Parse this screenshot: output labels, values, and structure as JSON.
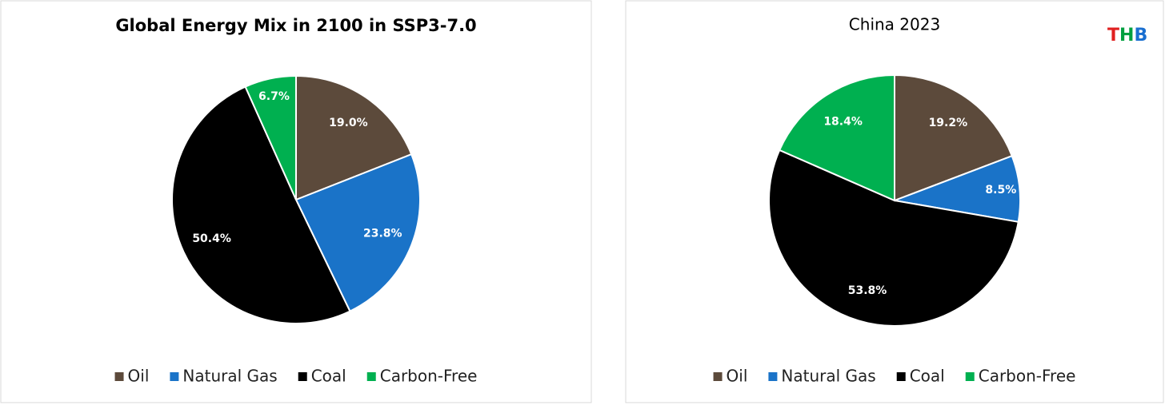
{
  "chart_data": [
    {
      "type": "pie",
      "title": "Global Energy Mix in 2100 in SSP3-7.0",
      "categories": [
        "Oil",
        "Natural Gas",
        "Coal",
        "Carbon-Free"
      ],
      "values": [
        19.0,
        23.8,
        50.4,
        6.7
      ],
      "value_labels": [
        "19.0%",
        "23.8%",
        "50.4%",
        "6.7%"
      ],
      "colors": [
        "#5c4a3b",
        "#1a73c8",
        "#000000",
        "#00b050"
      ],
      "legend": "bottom"
    },
    {
      "type": "pie",
      "title": "China 2023",
      "logo": "THB",
      "categories": [
        "Oil",
        "Natural Gas",
        "Coal",
        "Carbon-Free"
      ],
      "values": [
        19.2,
        8.5,
        53.8,
        18.4
      ],
      "value_labels": [
        "19.2%",
        "8.5%",
        "53.8%",
        "18.4%"
      ],
      "colors": [
        "#5c4a3b",
        "#1a73c8",
        "#000000",
        "#00b050"
      ],
      "legend": "bottom"
    }
  ]
}
